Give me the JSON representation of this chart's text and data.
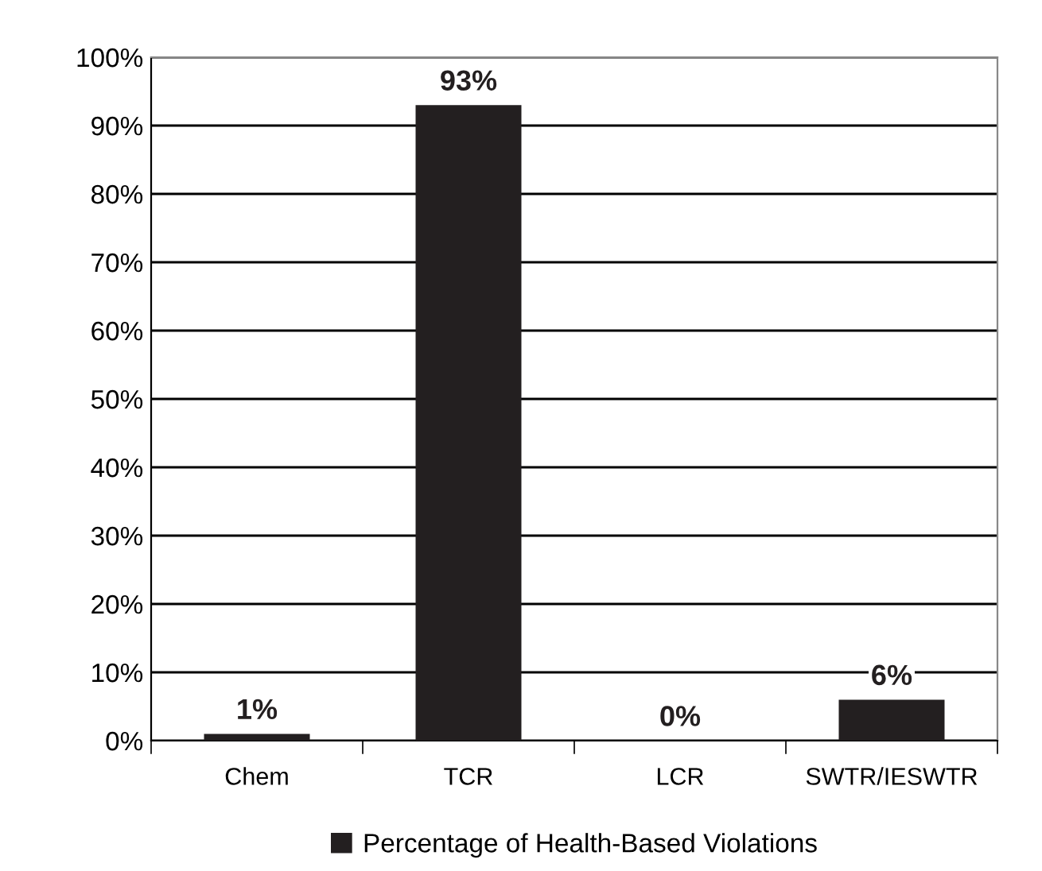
{
  "chart_data": {
    "type": "bar",
    "categories": [
      "Chem",
      "TCR",
      "LCR",
      "SWTR/IESWTR"
    ],
    "series": [
      {
        "name": "Percentage of Health-Based Violations",
        "color": "#231f20",
        "values": [
          1,
          93,
          0,
          6
        ]
      }
    ],
    "ylim": [
      0,
      100
    ],
    "yticks": [
      {
        "value": 0,
        "label": "0%"
      },
      {
        "value": 10,
        "label": "10%"
      },
      {
        "value": 20,
        "label": "20%"
      },
      {
        "value": 30,
        "label": "30%"
      },
      {
        "value": 40,
        "label": "40%"
      },
      {
        "value": 50,
        "label": "50%"
      },
      {
        "value": 60,
        "label": "60%"
      },
      {
        "value": 70,
        "label": "70%"
      },
      {
        "value": 80,
        "label": "80%"
      },
      {
        "value": 90,
        "label": "90%"
      },
      {
        "value": 100,
        "label": "100%"
      }
    ],
    "value_labels": [
      "1%",
      "93%",
      "0%",
      "6%"
    ],
    "grid": "y",
    "legend": "bottom"
  }
}
